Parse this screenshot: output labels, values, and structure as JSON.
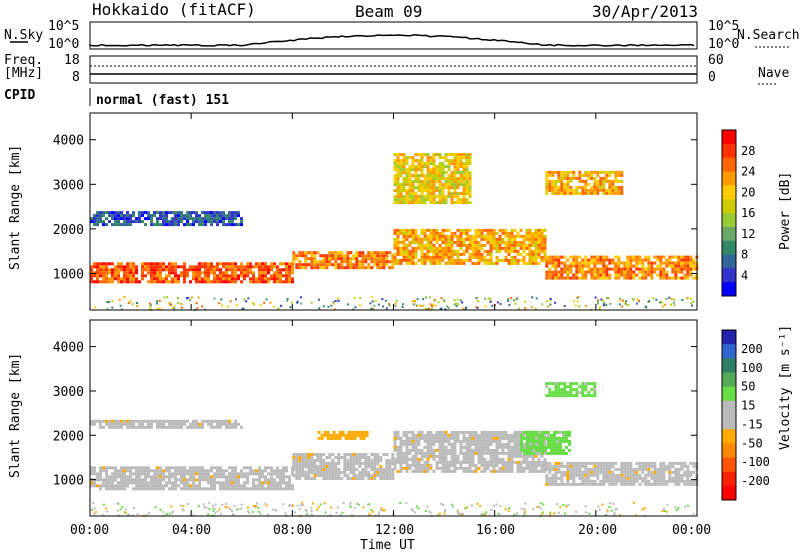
{
  "header": {
    "station": "Hokkaido (fitACF)",
    "beam": "Beam 09",
    "date": "30/Apr/2013"
  },
  "top_panels": {
    "nsky_label": "N.Sky",
    "nsearch_label": "N.Search",
    "noise_ticks": [
      "10^5",
      "10^0"
    ],
    "freq_label": "Freq.",
    "freq_unit": "[MHz]",
    "freq_ticks": [
      "18",
      "8"
    ],
    "nave_label": "Nave",
    "nave_ticks": [
      "60",
      "0"
    ],
    "cpid_label": "CPID",
    "cpid_value": "normal (fast) 151"
  },
  "x_axis": {
    "label": "Time UT",
    "ticks": [
      "00:00",
      "04:00",
      "08:00",
      "12:00",
      "16:00",
      "20:00",
      "00:00"
    ]
  },
  "colorbars": {
    "power": {
      "label": "Power [dB]",
      "ticks": [
        "28",
        "24",
        "20",
        "16",
        "12",
        "8",
        "4"
      ],
      "colors": [
        "#ff0000",
        "#ff3300",
        "#ff6600",
        "#ff9900",
        "#ffcc00",
        "#cccc00",
        "#99cc33",
        "#66aa66",
        "#338866",
        "#336699",
        "#3333cc",
        "#0000ff"
      ]
    },
    "velocity": {
      "label": "Velocity [m s⁻¹]",
      "ticks": [
        "200",
        "100",
        "50",
        "15",
        "-15",
        "-50",
        "-100",
        "-200"
      ],
      "colors": [
        "#2222aa",
        "#3366cc",
        "#2f7f66",
        "#55aa55",
        "#66dd44",
        "#bbbbbb",
        "#bbbbbb",
        "#ffaa00",
        "#ff8800",
        "#ff5500",
        "#ff2200",
        "#ff0000"
      ]
    }
  },
  "chart_data": [
    {
      "type": "heatmap",
      "title": "Power",
      "ylabel": "Slant Range [km]",
      "xlabel": "",
      "xlim": [
        0,
        24
      ],
      "ylim": [
        180,
        4600
      ],
      "yticks": [
        1000,
        2000,
        3000,
        4000
      ],
      "colorbar": {
        "label": "Power [dB]",
        "ticks": [
          28,
          24,
          20,
          16,
          12,
          8,
          4
        ]
      },
      "bands": [
        {
          "t0": 0,
          "t1": 8,
          "r0": 800,
          "r1": 1250,
          "level": 26
        },
        {
          "t0": 8,
          "t1": 12,
          "r0": 1100,
          "r1": 1500,
          "level": 24
        },
        {
          "t0": 12,
          "t1": 18,
          "r0": 1200,
          "r1": 2000,
          "level": 22
        },
        {
          "t0": 18,
          "t1": 24,
          "r0": 900,
          "r1": 1400,
          "level": 24
        },
        {
          "t0": 0,
          "t1": 6,
          "r0": 2100,
          "r1": 2400,
          "level": 8
        },
        {
          "t0": 12,
          "t1": 15,
          "r0": 2600,
          "r1": 3700,
          "level": 20
        },
        {
          "t0": 18,
          "t1": 21,
          "r0": 2800,
          "r1": 3300,
          "level": 22
        }
      ]
    },
    {
      "type": "heatmap",
      "title": "Velocity",
      "ylabel": "Slant Range [km]",
      "xlabel": "Time UT",
      "xlim": [
        0,
        24
      ],
      "ylim": [
        180,
        4600
      ],
      "yticks": [
        1000,
        2000,
        3000,
        4000
      ],
      "colorbar": {
        "label": "Velocity [m s⁻¹]",
        "ticks": [
          200,
          100,
          50,
          15,
          -15,
          -50,
          -100,
          -200
        ]
      },
      "bands": [
        {
          "t0": 0,
          "t1": 8,
          "r0": 800,
          "r1": 1300,
          "level": 0
        },
        {
          "t0": 8,
          "t1": 12,
          "r0": 1000,
          "r1": 1600,
          "level": 0
        },
        {
          "t0": 12,
          "t1": 18,
          "r0": 1200,
          "r1": 2100,
          "level": 0
        },
        {
          "t0": 18,
          "t1": 24,
          "r0": 900,
          "r1": 1400,
          "level": 0
        },
        {
          "t0": 17,
          "t1": 19,
          "r0": 1600,
          "r1": 2100,
          "level": 40
        },
        {
          "t0": 18,
          "t1": 20,
          "r0": 2900,
          "r1": 3200,
          "level": 40
        },
        {
          "t0": 0,
          "t1": 6,
          "r0": 2150,
          "r1": 2350,
          "level": 0
        },
        {
          "t0": 9,
          "t1": 11,
          "r0": 1900,
          "r1": 2100,
          "level": -60
        }
      ]
    }
  ]
}
